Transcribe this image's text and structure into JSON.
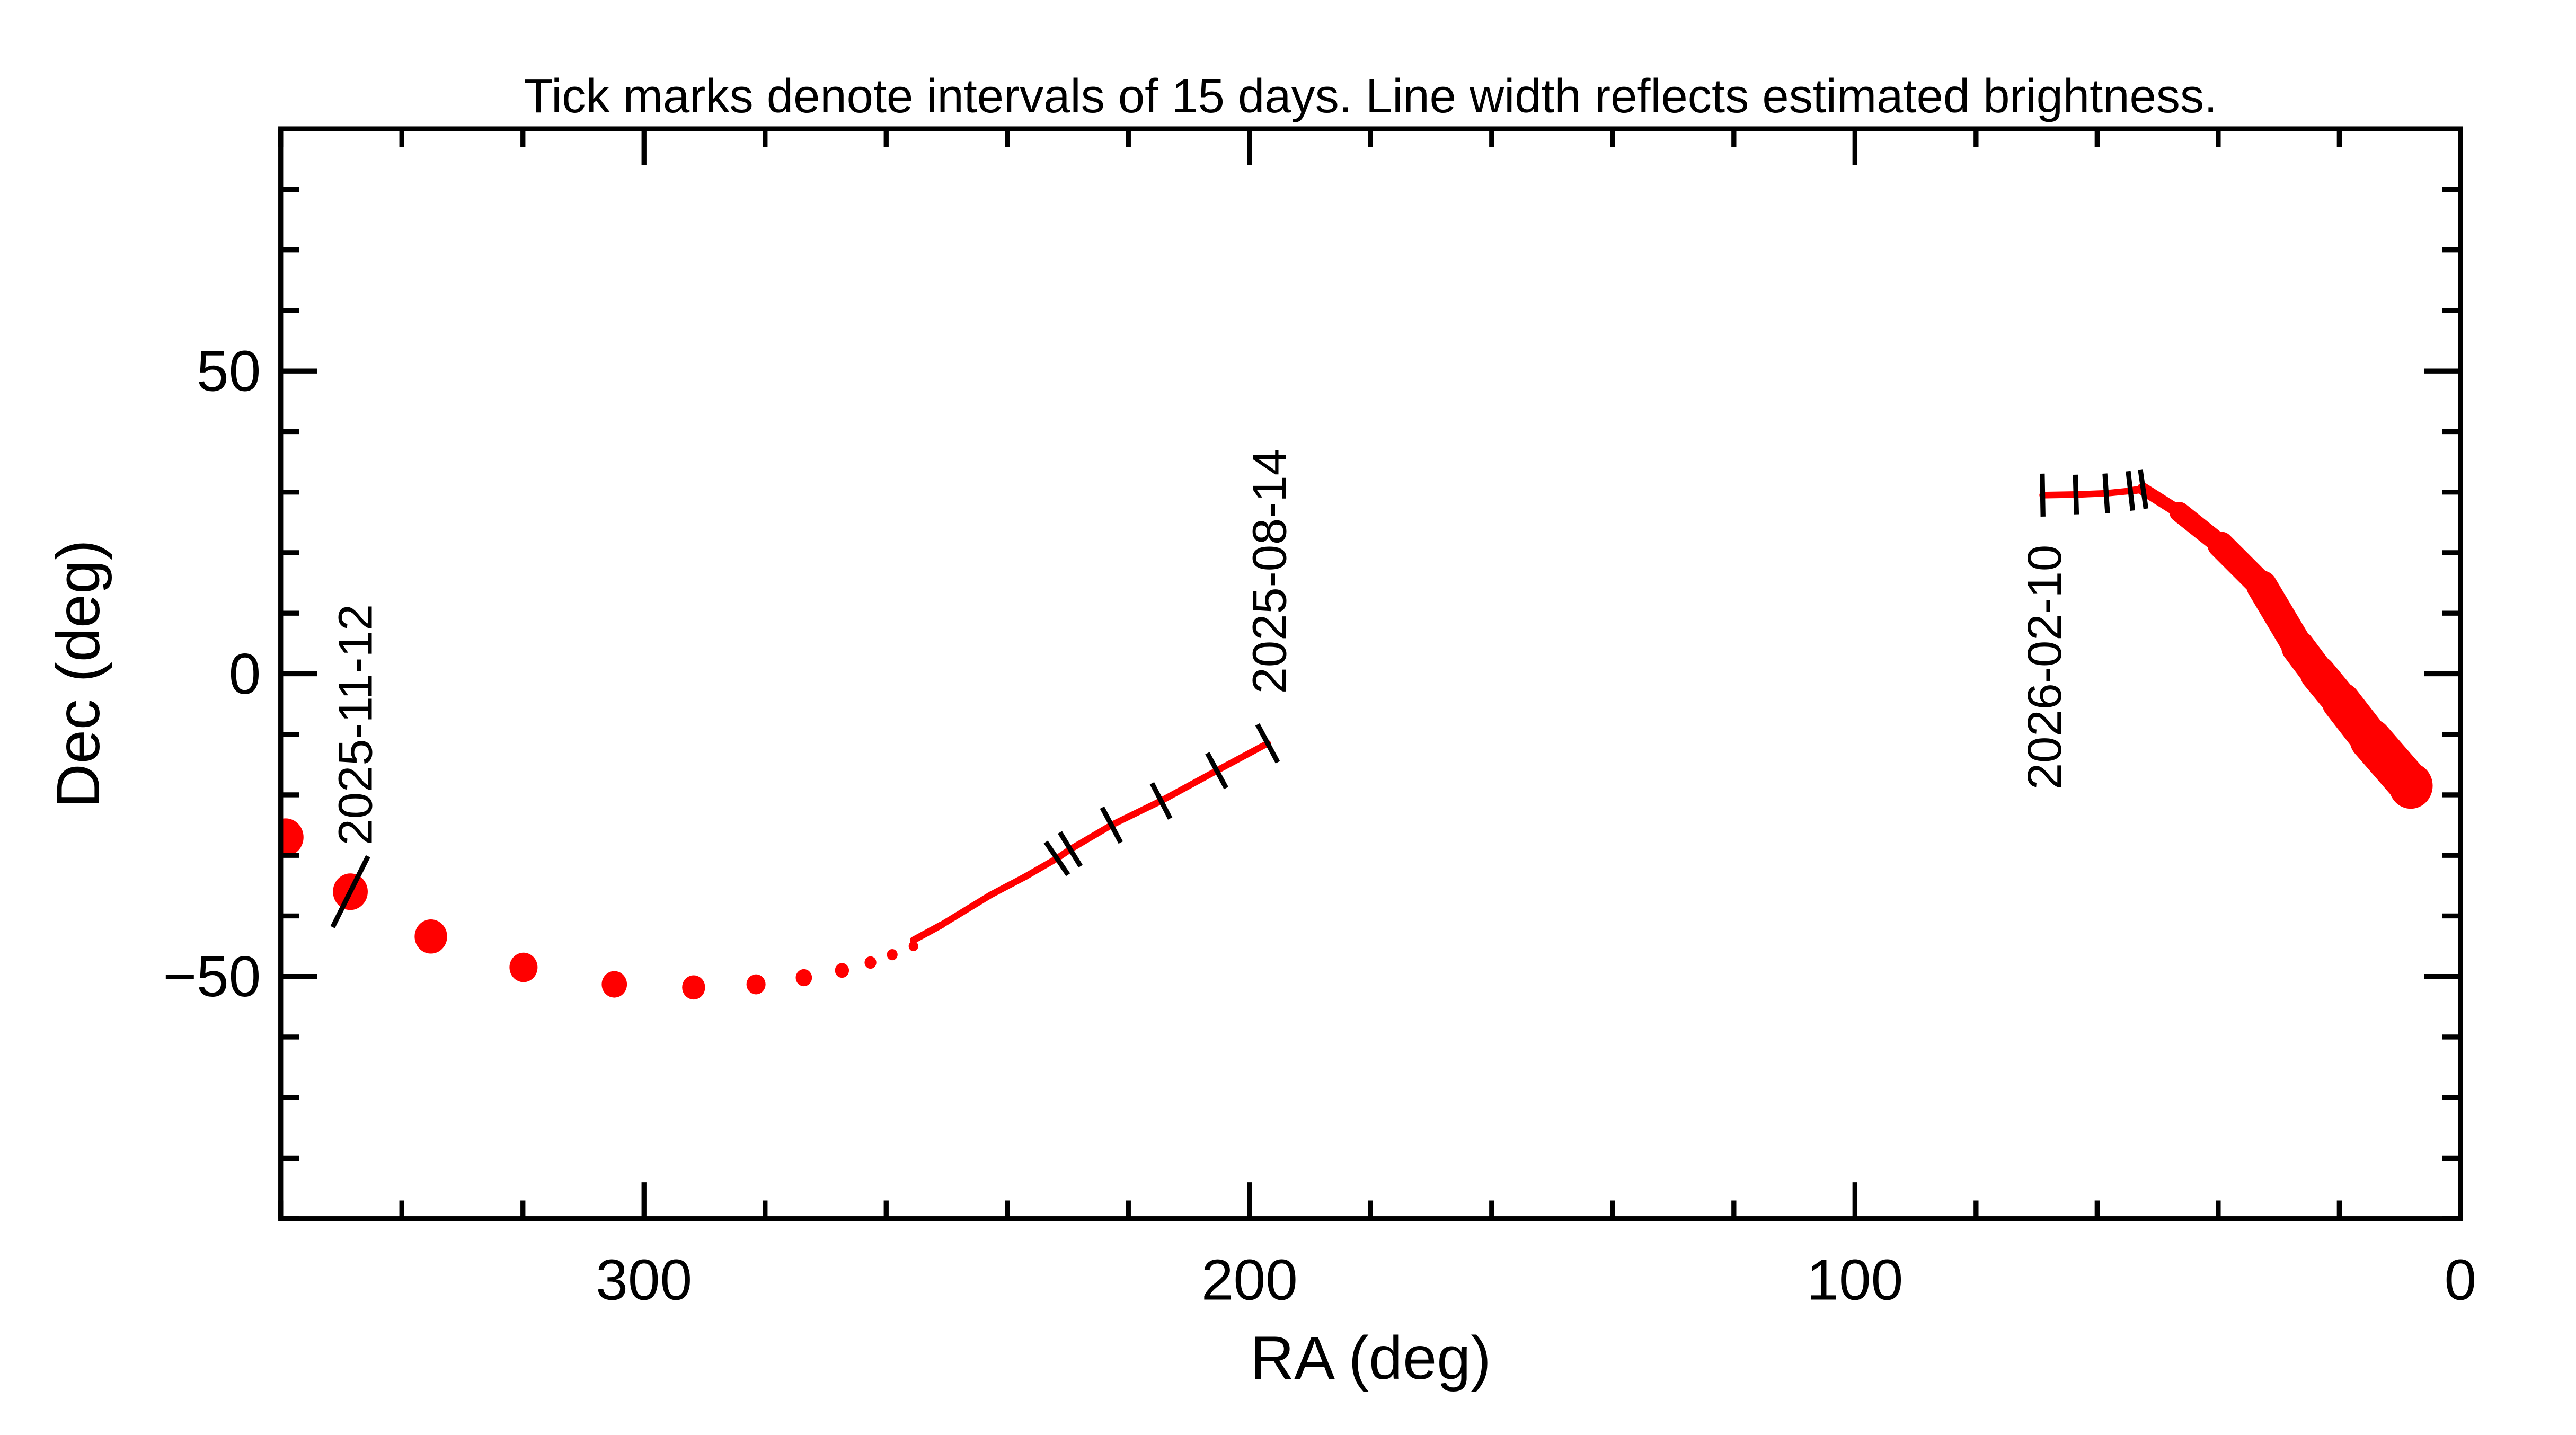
{
  "chart_data": {
    "type": "line",
    "title": "Tick marks denote intervals of 15 days.  Line width reflects estimated brightness.",
    "xlabel": "RA (deg)",
    "ylabel": "Dec (deg)",
    "xlim": [
      360,
      0
    ],
    "ylim": [
      -90,
      90
    ],
    "x_ticks": [
      300,
      200,
      100,
      0
    ],
    "y_ticks": [
      50,
      0,
      -50
    ],
    "y_tick_labels": [
      "50",
      "0",
      "−50"
    ],
    "x_minor_step": 20,
    "y_minor_step": 10,
    "grid": false,
    "color": "#ff0000",
    "tick_color": "#000000",
    "tracks": [
      {
        "start_label": "2025-08-14",
        "line": [
          [
            197,
            -11.5,
            0.08
          ],
          [
            205.4,
            -16,
            0.08
          ],
          [
            214.6,
            -21,
            0.08
          ],
          [
            222.8,
            -25,
            0.08
          ],
          [
            229.6,
            -29,
            0.08
          ],
          [
            231.8,
            -30.5,
            0.08
          ],
          [
            237,
            -33.5,
            0.09
          ],
          [
            242.7,
            -36.5,
            0.1
          ],
          [
            250.9,
            -41.5,
            0.12
          ],
          [
            255.5,
            -44,
            0.13
          ]
        ],
        "interval_ticks": [
          [
            197,
            -11.5
          ],
          [
            205.4,
            -16
          ],
          [
            214.6,
            -21
          ],
          [
            222.8,
            -25
          ],
          [
            229.6,
            -29
          ],
          [
            231.8,
            -30.5
          ]
        ],
        "dots": [
          [
            255.5,
            -45,
            0.17
          ],
          [
            259,
            -46.4,
            0.19
          ],
          [
            262.6,
            -47.7,
            0.21
          ],
          [
            267.3,
            -49,
            0.25
          ],
          [
            273.6,
            -50.2,
            0.29
          ],
          [
            281.5,
            -51.3,
            0.34
          ],
          [
            291.8,
            -51.8,
            0.41
          ],
          [
            304.9,
            -51.3,
            0.45
          ],
          [
            319.9,
            -48.5,
            0.5
          ],
          [
            335.2,
            -43.4,
            0.58
          ],
          [
            348.5,
            -36,
            0.62
          ],
          [
            359.2,
            -27,
            0.64
          ]
        ]
      },
      {
        "date_marker": {
          "label": "2025-11-12",
          "point": [
            348.5,
            -36
          ]
        }
      },
      {
        "start_label": "2026-02-10",
        "line": [
          [
            69,
            29.5,
            0.1
          ],
          [
            63.5,
            29.6,
            0.1
          ],
          [
            58.5,
            29.8,
            0.11
          ],
          [
            54.5,
            30.2,
            0.12
          ],
          [
            52.4,
            30.5,
            0.15
          ],
          [
            46.4,
            26.7,
            0.3
          ],
          [
            39.6,
            21.3,
            0.42
          ],
          [
            32.8,
            14.5,
            0.52
          ],
          [
            26.8,
            4.4,
            0.58
          ],
          [
            23.5,
            0,
            0.62
          ],
          [
            19.7,
            -4.6,
            0.66
          ],
          [
            14.8,
            -10.9,
            0.72
          ],
          [
            8.2,
            -18.5,
            0.78
          ]
        ],
        "interval_ticks": [
          [
            69,
            29.5
          ],
          [
            63.5,
            29.6
          ],
          [
            58.5,
            29.8
          ],
          [
            54.5,
            30.2
          ],
          [
            52.4,
            30.5
          ]
        ],
        "dots": [
          [
            26.8,
            4.4,
            0.58
          ],
          [
            23.5,
            0,
            0.62
          ],
          [
            19.7,
            -4.6,
            0.66
          ],
          [
            14.8,
            -10.9,
            0.72
          ],
          [
            8.2,
            -18.5,
            0.78
          ]
        ]
      }
    ]
  }
}
